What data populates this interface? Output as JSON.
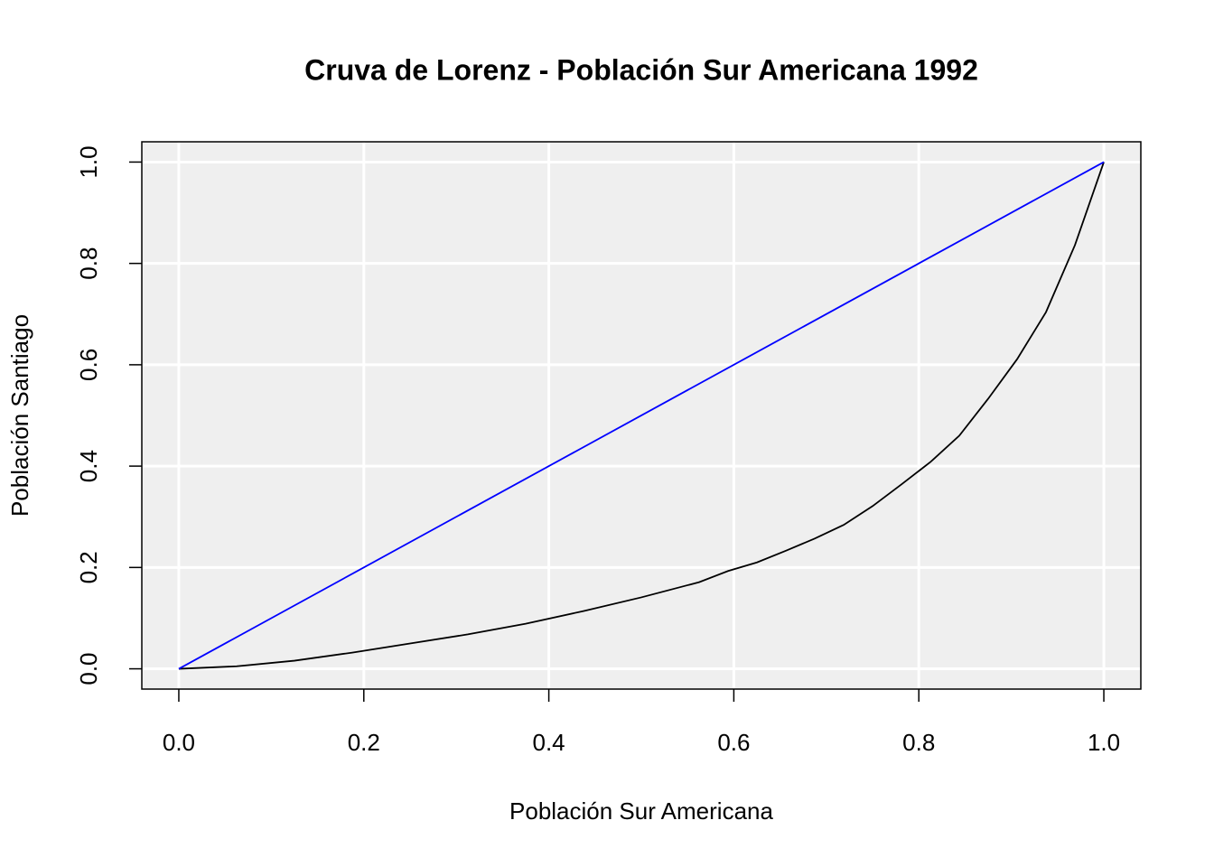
{
  "chart_data": {
    "type": "line",
    "title": "Cruva de Lorenz - Población Sur Americana 1992",
    "x_label": "Población Sur Americana",
    "y_label": "Población Santiago",
    "xlim": [
      -0.04,
      1.04
    ],
    "ylim": [
      -0.04,
      1.04
    ],
    "xticks": [
      {
        "value": 0,
        "label": "0.0"
      },
      0.2,
      0.4,
      0.6,
      0.8,
      {
        "value": 1,
        "label": "1.0"
      }
    ],
    "yticks": [
      {
        "value": 0,
        "label": "0.0"
      },
      0.2,
      0.4,
      0.6,
      0.8,
      {
        "value": 1,
        "label": "1.0"
      }
    ],
    "grid": true,
    "background": "#efefef",
    "grid_color": "#ffffff",
    "series": [
      {
        "color": "#000000",
        "x": [
          0,
          0.0625,
          0.125,
          0.1875,
          0.25,
          0.3125,
          0.375,
          0.4375,
          0.5,
          0.5625,
          0.59375,
          0.625,
          0.65625,
          0.6875,
          0.71875,
          0.75,
          0.78125,
          0.8125,
          0.84375,
          0.875,
          0.90625,
          0.9375,
          0.96875,
          1
        ],
        "values": [
          0,
          0.005,
          0.016,
          0.032,
          0.05,
          0.068,
          0.089,
          0.114,
          0.141,
          0.171,
          0.193,
          0.21,
          0.233,
          0.257,
          0.284,
          0.321,
          0.364,
          0.408,
          0.46,
          0.533,
          0.611,
          0.704,
          0.836,
          1
        ]
      },
      {
        "color": "#0000ff",
        "x": [
          0,
          1
        ],
        "values": [
          0,
          1
        ]
      }
    ]
  }
}
